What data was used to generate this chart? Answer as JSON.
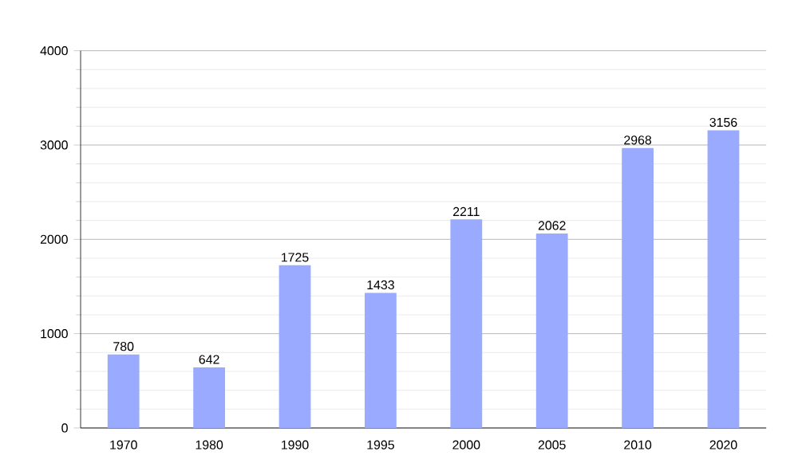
{
  "chart_data": {
    "type": "bar",
    "categories": [
      "1970",
      "1980",
      "1990",
      "1995",
      "2000",
      "2005",
      "2010",
      "2020"
    ],
    "values": [
      780,
      642,
      1725,
      1433,
      2211,
      2062,
      2968,
      3156
    ],
    "color": "#99aaff",
    "ylim": [
      0,
      4000
    ],
    "yticks": [
      0,
      1000,
      2000,
      3000,
      4000
    ],
    "grid": "y",
    "data_labels": true
  }
}
